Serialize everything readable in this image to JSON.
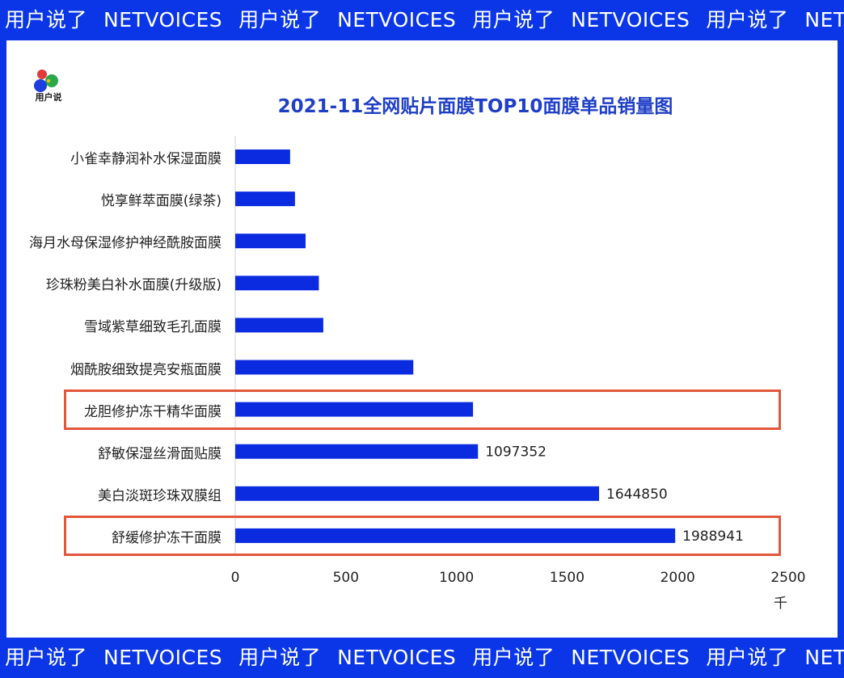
{
  "banner": {
    "repeat": [
      "用户说了",
      "NETVOICES",
      "用户说了",
      "NETVOICES",
      "用户说了",
      "NETVOICES",
      "用户说了",
      "NETVOICES"
    ]
  },
  "logo": {
    "text": "用户说"
  },
  "colors": {
    "bar": "#0b2be0",
    "highlight": "#e2573c",
    "banner": "#0a36e8",
    "title": "#1f3fc6"
  },
  "chart_data": {
    "type": "bar",
    "orientation": "horizontal",
    "title": "2021-11全网贴片面膜TOP10面膜单品销量图",
    "unit": "千",
    "xlim": [
      0,
      2500
    ],
    "xticks": [
      "0",
      "500",
      "1000",
      "1500",
      "2000",
      "2500"
    ],
    "grid": false,
    "categories": [
      "小雀幸静润补水保湿面膜",
      "悦享鲜萃面膜(绿茶)",
      "海月水母保湿修护神经酰胺面膜",
      "珍珠粉美白补水面膜(升级版)",
      "雪域紫草细致毛孔面膜",
      "烟酰胺细致提亮安瓶面膜",
      "龙胆修护冻干精华面膜",
      "舒敏保湿丝滑面贴膜",
      "美白淡斑珍珠双膜组",
      "舒缓修护冻干面膜"
    ],
    "values": [
      248,
      270,
      318,
      378,
      398,
      805,
      1075,
      1097.352,
      1644.85,
      1988.941
    ],
    "data_labels": [
      "",
      "",
      "",
      "",
      "",
      "",
      "",
      "1097352",
      "1644850",
      "1988941"
    ],
    "highlighted": [
      "龙胆修护冻干精华面膜",
      "舒缓修护冻干面膜"
    ]
  }
}
